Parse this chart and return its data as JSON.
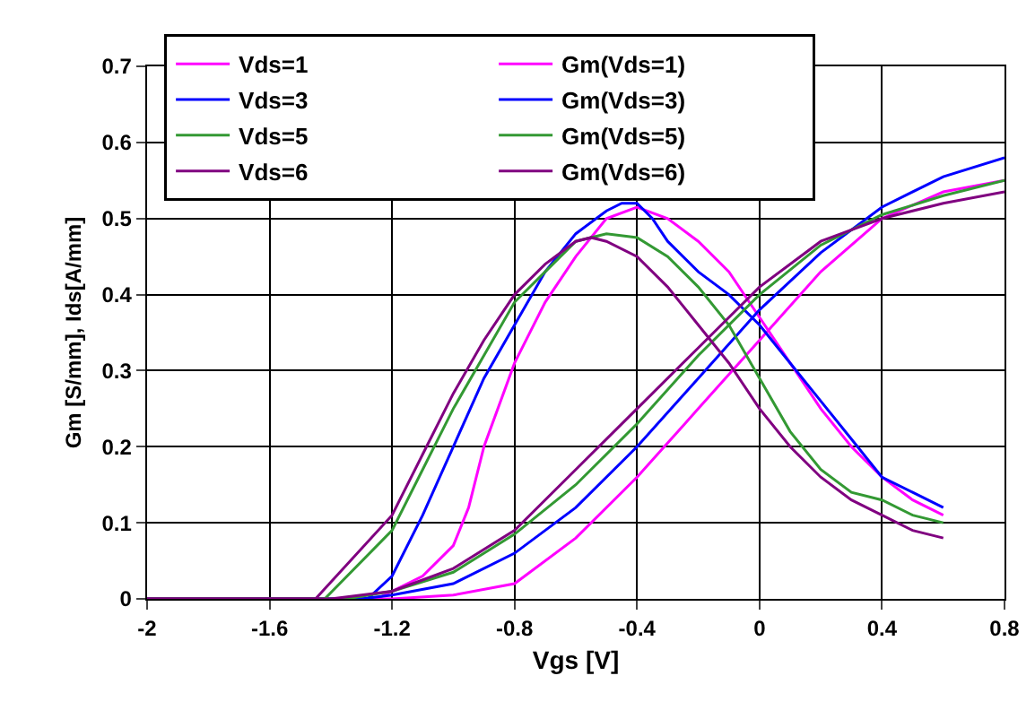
{
  "chart_data": {
    "type": "line",
    "xlabel": "Vgs [V]",
    "ylabel": "Gm [S/mm], Ids[A/mm]",
    "xlim": [
      -2,
      0.8
    ],
    "xticks": [
      -2,
      -1.6,
      -1.2,
      -0.8,
      -0.4,
      0,
      0.4,
      0.8
    ],
    "ylim": [
      0,
      0.7
    ],
    "yticks": [
      0,
      0.1,
      0.2,
      0.3,
      0.4,
      0.5,
      0.6,
      0.7
    ],
    "grid": true,
    "legend": "top left",
    "marker": "none",
    "line_style": "solid",
    "series": [
      {
        "name": "Vds=1",
        "color": "#ff00ff",
        "x": [
          -2,
          -1.2,
          -1.0,
          -0.8,
          -0.6,
          -0.4,
          -0.2,
          0,
          0.2,
          0.4,
          0.6,
          0.8
        ],
        "values": [
          0,
          0,
          0.005,
          0.02,
          0.08,
          0.16,
          0.25,
          0.34,
          0.43,
          0.5,
          0.535,
          0.55
        ]
      },
      {
        "name": "Gm(Vds=1)",
        "color": "#ff00ff",
        "x": [
          -2,
          -1.25,
          -1.1,
          -1.0,
          -0.95,
          -0.9,
          -0.8,
          -0.7,
          -0.6,
          -0.5,
          -0.4,
          -0.3,
          -0.2,
          -0.1,
          0,
          0.1,
          0.2,
          0.3,
          0.4,
          0.5,
          0.6
        ],
        "values": [
          0,
          0,
          0.03,
          0.07,
          0.12,
          0.2,
          0.31,
          0.39,
          0.45,
          0.5,
          0.515,
          0.5,
          0.47,
          0.43,
          0.37,
          0.31,
          0.25,
          0.2,
          0.16,
          0.13,
          0.11
        ]
      },
      {
        "name": "Vds=3",
        "color": "#0000ff",
        "x": [
          -2,
          -1.3,
          -1.2,
          -1.0,
          -0.8,
          -0.6,
          -0.4,
          -0.2,
          0,
          0.2,
          0.4,
          0.6,
          0.8
        ],
        "values": [
          0,
          0,
          0.005,
          0.02,
          0.06,
          0.12,
          0.2,
          0.29,
          0.38,
          0.455,
          0.515,
          0.555,
          0.58
        ]
      },
      {
        "name": "Gm(Vds=3)",
        "color": "#0000ff",
        "x": [
          -2,
          -1.28,
          -1.2,
          -1.1,
          -1.0,
          -0.9,
          -0.8,
          -0.7,
          -0.6,
          -0.5,
          -0.45,
          -0.4,
          -0.35,
          -0.3,
          -0.2,
          -0.1,
          0,
          0.1,
          0.2,
          0.3,
          0.4,
          0.5,
          0.6
        ],
        "values": [
          0,
          0,
          0.03,
          0.11,
          0.2,
          0.29,
          0.36,
          0.43,
          0.48,
          0.51,
          0.52,
          0.52,
          0.5,
          0.47,
          0.43,
          0.4,
          0.36,
          0.31,
          0.26,
          0.21,
          0.16,
          0.14,
          0.12
        ]
      },
      {
        "name": "Vds=5",
        "color": "#339933",
        "x": [
          -2,
          -1.35,
          -1.2,
          -1.0,
          -0.8,
          -0.6,
          -0.4,
          -0.2,
          0,
          0.2,
          0.4,
          0.6,
          0.8
        ],
        "values": [
          0,
          0,
          0.01,
          0.035,
          0.085,
          0.15,
          0.23,
          0.32,
          0.4,
          0.465,
          0.505,
          0.53,
          0.55
        ]
      },
      {
        "name": "Gm(Vds=5)",
        "color": "#339933",
        "x": [
          -2,
          -1.42,
          -1.2,
          -1.1,
          -1.0,
          -0.9,
          -0.8,
          -0.7,
          -0.6,
          -0.5,
          -0.4,
          -0.3,
          -0.2,
          -0.1,
          0,
          0.1,
          0.2,
          0.3,
          0.4,
          0.5,
          0.6
        ],
        "values": [
          0,
          0,
          0.09,
          0.17,
          0.25,
          0.32,
          0.39,
          0.43,
          0.47,
          0.48,
          0.475,
          0.45,
          0.41,
          0.36,
          0.29,
          0.22,
          0.17,
          0.14,
          0.13,
          0.11,
          0.1
        ]
      },
      {
        "name": "Vds=6",
        "color": "#800080",
        "x": [
          -2,
          -1.4,
          -1.2,
          -1.0,
          -0.8,
          -0.6,
          -0.4,
          -0.2,
          0,
          0.2,
          0.4,
          0.6,
          0.8
        ],
        "values": [
          0,
          0,
          0.01,
          0.04,
          0.09,
          0.17,
          0.25,
          0.33,
          0.41,
          0.47,
          0.5,
          0.52,
          0.535
        ]
      },
      {
        "name": "Gm(Vds=6)",
        "color": "#800080",
        "x": [
          -2,
          -1.45,
          -1.2,
          -1.1,
          -1.0,
          -0.9,
          -0.8,
          -0.7,
          -0.6,
          -0.55,
          -0.5,
          -0.4,
          -0.3,
          -0.2,
          -0.1,
          0,
          0.1,
          0.2,
          0.3,
          0.4,
          0.5,
          0.6
        ],
        "values": [
          0,
          0,
          0.11,
          0.19,
          0.27,
          0.34,
          0.4,
          0.44,
          0.47,
          0.475,
          0.47,
          0.45,
          0.41,
          0.36,
          0.31,
          0.25,
          0.2,
          0.16,
          0.13,
          0.11,
          0.09,
          0.08
        ]
      }
    ]
  }
}
